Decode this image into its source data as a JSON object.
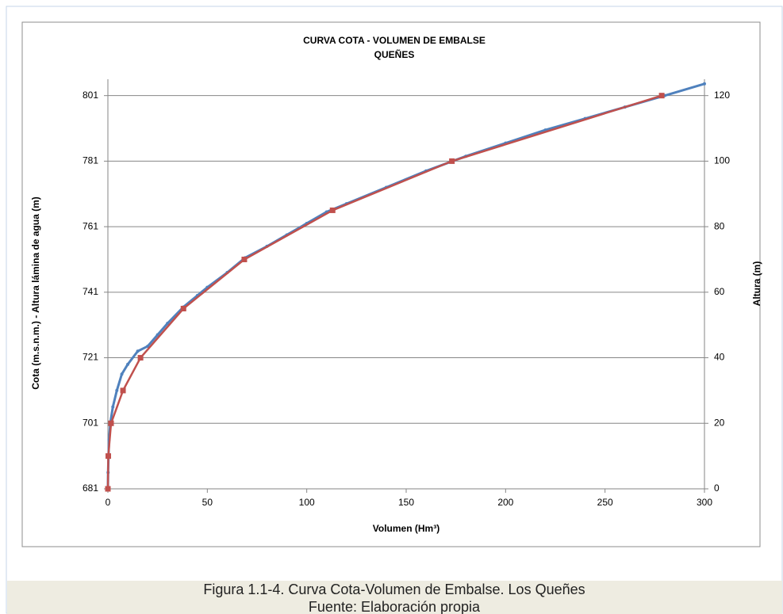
{
  "chart_data": {
    "type": "line",
    "title": "CURVA  COTA - VOLUMEN DE EMBALSE",
    "subtitle": "QUEÑES",
    "xlabel": "Volumen (Hm³)",
    "ylabel": "Cota (m.s.n.m.) - Altura lámina de agua (m)",
    "y2label": "Altura (m)",
    "xlim": [
      0,
      300
    ],
    "xticks": [
      0,
      50,
      100,
      150,
      200,
      250,
      300
    ],
    "ylim": [
      681,
      806
    ],
    "yticks": [
      681,
      701,
      721,
      741,
      761,
      781,
      801
    ],
    "y2lim": [
      0,
      125
    ],
    "y2ticks": [
      0,
      20,
      40,
      60,
      80,
      100,
      120
    ],
    "grid": true,
    "series": [
      {
        "color": "#4f81bd",
        "x": [
          0,
          0.1,
          0.3,
          0.6,
          1.2,
          2.5,
          4.5,
          7,
          10,
          15,
          20,
          25,
          30,
          38,
          45,
          50,
          60,
          69,
          80,
          90,
          100,
          110,
          120,
          140,
          160,
          180,
          200,
          220,
          240,
          260,
          280,
          300
        ],
        "values": [
          681,
          686,
          691,
          696,
          701,
          706,
          711,
          716,
          719,
          723,
          724.5,
          728,
          731.5,
          736.5,
          740,
          742.5,
          747,
          751.5,
          755,
          758.5,
          762,
          765.5,
          768,
          773,
          778,
          782.5,
          786.5,
          790.5,
          794,
          797.5,
          801,
          804.6
        ]
      },
      {
        "color": "#c0504d",
        "axis": "y2",
        "x": [
          0,
          0.2,
          1.6,
          7.6,
          16.4,
          38,
          68.6,
          113,
          173,
          278.5
        ],
        "values": [
          0,
          10,
          20,
          30,
          40,
          55,
          70,
          85,
          100,
          120
        ]
      }
    ]
  },
  "caption": {
    "line1": "Figura 1.1-4. Curva Cota-Volumen de Embalse. Los Queñes",
    "line2": "Fuente: Elaboración propia"
  }
}
